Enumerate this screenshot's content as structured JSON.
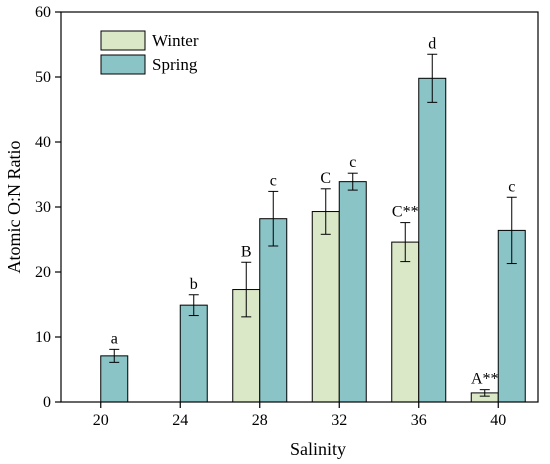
{
  "chart_data": {
    "type": "bar",
    "xlabel": "Salinity",
    "ylabel": "Atomic O:N Ratio",
    "categories": [
      "20",
      "24",
      "28",
      "32",
      "36",
      "40"
    ],
    "ylim": [
      0,
      60
    ],
    "yticks": [
      0,
      10,
      20,
      30,
      40,
      50,
      60
    ],
    "legend_position": "top-left",
    "grid": false,
    "series": [
      {
        "name": "Winter",
        "color": "#dbe8c8",
        "values": [
          null,
          null,
          17.3,
          29.3,
          24.6,
          1.4
        ],
        "errors": [
          null,
          null,
          4.2,
          3.5,
          3.0,
          0.5
        ],
        "labels": [
          "",
          "",
          "B",
          "C",
          "C**",
          "A**"
        ]
      },
      {
        "name": "Spring",
        "color": "#8bc4c7",
        "values": [
          7.1,
          14.9,
          28.2,
          33.9,
          49.8,
          26.4
        ],
        "errors": [
          1.0,
          1.6,
          4.2,
          1.3,
          3.7,
          5.1
        ],
        "labels": [
          "a",
          "b",
          "c",
          "c",
          "d",
          "c"
        ]
      }
    ]
  }
}
